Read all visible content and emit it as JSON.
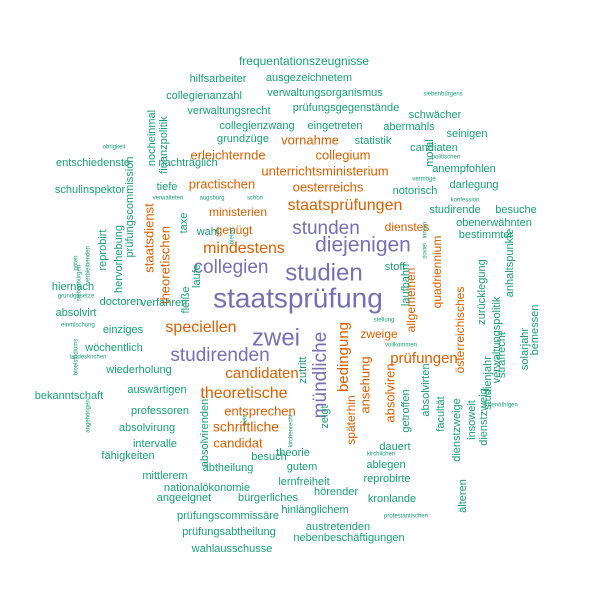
{
  "colors": {
    "background": "#ffffff",
    "purple": "#7570b3",
    "orange": "#d95f02",
    "green": "#1b9e77"
  },
  "words": [
    {
      "text": "staatsprüfung",
      "color": "purple",
      "rot": 0
    },
    {
      "text": "zwei",
      "color": "purple",
      "rot": 0
    },
    {
      "text": "studien",
      "color": "purple",
      "rot": 0
    },
    {
      "text": "diejenigen",
      "color": "purple",
      "rot": 0
    },
    {
      "text": "stunden",
      "color": "purple",
      "rot": 0
    },
    {
      "text": "collegien",
      "color": "purple",
      "rot": 0
    },
    {
      "text": "studirenden",
      "color": "purple",
      "rot": 0
    },
    {
      "text": "mündliche",
      "color": "purple",
      "rot": -90
    },
    {
      "text": "staatsprüfungen",
      "color": "orange",
      "rot": 0
    },
    {
      "text": "mindestens",
      "color": "orange",
      "rot": 0
    },
    {
      "text": "speciellen",
      "color": "orange",
      "rot": 0
    },
    {
      "text": "theoretische",
      "color": "orange",
      "rot": 0
    },
    {
      "text": "candidaten",
      "color": "orange",
      "rot": 0
    },
    {
      "text": "prüfungen",
      "color": "orange",
      "rot": 0
    },
    {
      "text": "bedingung",
      "color": "orange",
      "rot": -90
    },
    {
      "text": "schriftliche",
      "color": "orange",
      "rot": 0
    },
    {
      "text": "entsprechen",
      "color": "orange",
      "rot": 0
    },
    {
      "text": "candidat",
      "color": "orange",
      "rot": 0
    },
    {
      "text": "practischen",
      "color": "orange",
      "rot": 0
    },
    {
      "text": "ministerien",
      "color": "orange",
      "rot": 0
    },
    {
      "text": "erleichternde",
      "color": "orange",
      "rot": 0
    },
    {
      "text": "vornahme",
      "color": "orange",
      "rot": 0
    },
    {
      "text": "collegium",
      "color": "orange",
      "rot": 0
    },
    {
      "text": "oesterreichs",
      "color": "orange",
      "rot": 0
    },
    {
      "text": "unterrichtsministerium",
      "color": "orange",
      "rot": 0
    },
    {
      "text": "genügt",
      "color": "orange",
      "rot": 0
    },
    {
      "text": "dienstes",
      "color": "orange",
      "rot": 0
    },
    {
      "text": "zweige",
      "color": "orange",
      "rot": 0
    },
    {
      "text": "staatsdienst",
      "color": "orange",
      "rot": -90
    },
    {
      "text": "theoretischen",
      "color": "orange",
      "rot": -90
    },
    {
      "text": "ansehung",
      "color": "orange",
      "rot": -90
    },
    {
      "text": "späterhin",
      "color": "orange",
      "rot": -90
    },
    {
      "text": "absolviren",
      "color": "orange",
      "rot": -90
    },
    {
      "text": "allgemeinen",
      "color": "orange",
      "rot": -90
    },
    {
      "text": "quadriennium",
      "color": "orange",
      "rot": -90
    },
    {
      "text": "österreichisches",
      "color": "orange",
      "rot": -90
    },
    {
      "text": "frequentationszeugnisse",
      "color": "green",
      "rot": 0
    },
    {
      "text": "hilfsarbeiter",
      "color": "green",
      "rot": 0
    },
    {
      "text": "ausgezeichnetem",
      "color": "green",
      "rot": 0
    },
    {
      "text": "collegienanzahl",
      "color": "green",
      "rot": 0
    },
    {
      "text": "verwaltungsorganismus",
      "color": "green",
      "rot": 0
    },
    {
      "text": "siebenbürgens",
      "color": "green",
      "rot": 0
    },
    {
      "text": "verwaltungsrecht",
      "color": "green",
      "rot": 0
    },
    {
      "text": "prüfungsgegenstände",
      "color": "green",
      "rot": 0
    },
    {
      "text": "schwächer",
      "color": "green",
      "rot": 0
    },
    {
      "text": "collegienzwang",
      "color": "green",
      "rot": 0
    },
    {
      "text": "eingetreten",
      "color": "green",
      "rot": 0
    },
    {
      "text": "abermahls",
      "color": "green",
      "rot": 0
    },
    {
      "text": "seinigen",
      "color": "green",
      "rot": 0
    },
    {
      "text": "obrigkeit",
      "color": "green",
      "rot": 0
    },
    {
      "text": "grundzüge",
      "color": "green",
      "rot": 0
    },
    {
      "text": "statistik",
      "color": "green",
      "rot": 0
    },
    {
      "text": "candiaten",
      "color": "green",
      "rot": 0
    },
    {
      "text": "nachträglich",
      "color": "green",
      "rot": 0
    },
    {
      "text": "politischen",
      "color": "green",
      "rot": 0
    },
    {
      "text": "entschiedenste",
      "color": "green",
      "rot": 0
    },
    {
      "text": "anempfohlen",
      "color": "green",
      "rot": 0
    },
    {
      "text": "darlegung",
      "color": "green",
      "rot": 0
    },
    {
      "text": "schulinspektor",
      "color": "green",
      "rot": 0
    },
    {
      "text": "tiefe",
      "color": "green",
      "rot": 0
    },
    {
      "text": "notorisch",
      "color": "green",
      "rot": 0
    },
    {
      "text": "konfession",
      "color": "green",
      "rot": 0
    },
    {
      "text": "verwalteten",
      "color": "green",
      "rot": 0
    },
    {
      "text": "augsburg",
      "color": "green",
      "rot": 0
    },
    {
      "text": "schon",
      "color": "green",
      "rot": 0
    },
    {
      "text": "vermöge",
      "color": "green",
      "rot": 0
    },
    {
      "text": "studirende",
      "color": "green",
      "rot": 0
    },
    {
      "text": "besuche",
      "color": "green",
      "rot": 0
    },
    {
      "text": "obenerwähnten",
      "color": "green",
      "rot": 0
    },
    {
      "text": "wahl",
      "color": "green",
      "rot": 0
    },
    {
      "text": "bestimmter",
      "color": "green",
      "rot": 0
    },
    {
      "text": "stoff",
      "color": "green",
      "rot": 0
    },
    {
      "text": "hiernach",
      "color": "green",
      "rot": 0
    },
    {
      "text": "grundgesetze",
      "color": "green",
      "rot": 0
    },
    {
      "text": "absolvirt",
      "color": "green",
      "rot": 0
    },
    {
      "text": "doctoren",
      "color": "green",
      "rot": 0
    },
    {
      "text": "verfahren",
      "color": "green",
      "rot": 0
    },
    {
      "text": "einmischung",
      "color": "green",
      "rot": 0
    },
    {
      "text": "einziges",
      "color": "green",
      "rot": 0
    },
    {
      "text": "stellung",
      "color": "green",
      "rot": 0
    },
    {
      "text": "wöchentlich",
      "color": "green",
      "rot": 0
    },
    {
      "text": "vollkommen",
      "color": "green",
      "rot": 0
    },
    {
      "text": "landeskirchen",
      "color": "green",
      "rot": 0
    },
    {
      "text": "wiederholung",
      "color": "green",
      "rot": 0
    },
    {
      "text": "bekanntschaft",
      "color": "green",
      "rot": 0
    },
    {
      "text": "auswärtigen",
      "color": "green",
      "rot": 0
    },
    {
      "text": "professoren",
      "color": "green",
      "rot": 0
    },
    {
      "text": "benöthigen",
      "color": "green",
      "rot": 0
    },
    {
      "text": "absolvirung",
      "color": "green",
      "rot": 0
    },
    {
      "text": "intervalle",
      "color": "green",
      "rot": 0
    },
    {
      "text": "fähigkeiten",
      "color": "green",
      "rot": 0
    },
    {
      "text": "besuch",
      "color": "green",
      "rot": 0
    },
    {
      "text": "theorie",
      "color": "green",
      "rot": 0
    },
    {
      "text": "abtheilung",
      "color": "green",
      "rot": 0
    },
    {
      "text": "gutem",
      "color": "green",
      "rot": 0
    },
    {
      "text": "dauert",
      "color": "green",
      "rot": 0
    },
    {
      "text": "kirchlichen",
      "color": "green",
      "rot": 0
    },
    {
      "text": "ablegen",
      "color": "green",
      "rot": 0
    },
    {
      "text": "reprobirte",
      "color": "green",
      "rot": 0
    },
    {
      "text": "mittlerem",
      "color": "green",
      "rot": 0
    },
    {
      "text": "nationalökonomie",
      "color": "green",
      "rot": 0
    },
    {
      "text": "lernfreiheit",
      "color": "green",
      "rot": 0
    },
    {
      "text": "angeeignet",
      "color": "green",
      "rot": 0
    },
    {
      "text": "bürgerliches",
      "color": "green",
      "rot": 0
    },
    {
      "text": "hörender",
      "color": "green",
      "rot": 0
    },
    {
      "text": "kronlande",
      "color": "green",
      "rot": 0
    },
    {
      "text": "hinlänglichem",
      "color": "green",
      "rot": 0
    },
    {
      "text": "protestantischen",
      "color": "green",
      "rot": 0
    },
    {
      "text": "prüfungscommissäre",
      "color": "green",
      "rot": 0
    },
    {
      "text": "austretenden",
      "color": "green",
      "rot": 0
    },
    {
      "text": "prüfungsabtheilung",
      "color": "green",
      "rot": 0
    },
    {
      "text": "nebenbeschäftigungen",
      "color": "green",
      "rot": 0
    },
    {
      "text": "wahlausschusse",
      "color": "green",
      "rot": 0
    },
    {
      "text": "nocheinmal",
      "color": "green",
      "rot": -90
    },
    {
      "text": "finanzpolitik",
      "color": "green",
      "rot": -90
    },
    {
      "text": "prüfungscommission",
      "color": "green",
      "rot": -90
    },
    {
      "text": "hervorhebung",
      "color": "green",
      "rot": -90
    },
    {
      "text": "reprobirt",
      "color": "green",
      "rot": -90
    },
    {
      "text": "taxe",
      "color": "green",
      "rot": -90
    },
    {
      "text": "fleiße",
      "color": "green",
      "rot": -90
    },
    {
      "text": "laufe",
      "color": "green",
      "rot": -90
    },
    {
      "text": "laufbahn",
      "color": "green",
      "rot": -90
    },
    {
      "text": "moral",
      "color": "green",
      "rot": -90
    },
    {
      "text": "zutritt",
      "color": "green",
      "rot": -90
    },
    {
      "text": "zeigt",
      "color": "green",
      "rot": -90
    },
    {
      "text": "getroffen",
      "color": "green",
      "rot": -90
    },
    {
      "text": "facultät",
      "color": "green",
      "rot": -90
    },
    {
      "text": "absolvirten",
      "color": "green",
      "rot": -90
    },
    {
      "text": "älteren",
      "color": "green",
      "rot": -90
    },
    {
      "text": "dienstzweige",
      "color": "green",
      "rot": -90
    },
    {
      "text": "insoweit",
      "color": "green",
      "rot": -90
    },
    {
      "text": "studienjahr",
      "color": "green",
      "rot": -90
    },
    {
      "text": "dienstzweig",
      "color": "green",
      "rot": -90
    },
    {
      "text": "zurücklegung",
      "color": "green",
      "rot": -90
    },
    {
      "text": "verwaltungspolitik",
      "color": "green",
      "rot": -90
    },
    {
      "text": "strafrecht",
      "color": "green",
      "rot": -90
    },
    {
      "text": "anhaltspunkte",
      "color": "green",
      "rot": -90
    },
    {
      "text": "solarjahr",
      "color": "green",
      "rot": -90
    },
    {
      "text": "bemessen",
      "color": "green",
      "rot": -90
    },
    {
      "text": "absolvirenden",
      "color": "green",
      "rot": -90
    },
    {
      "text": "kirchenrecht",
      "color": "green",
      "rot": -90
    },
    {
      "text": "freie",
      "color": "green",
      "rot": -90
    },
    {
      "text": "bieten",
      "color": "green",
      "rot": -90
    },
    {
      "text": "soviel",
      "color": "green",
      "rot": -90
    },
    {
      "text": "innern",
      "color": "green",
      "rot": -90
    },
    {
      "text": "böten",
      "color": "green",
      "rot": -90
    },
    {
      "text": "verbleibenden",
      "color": "green",
      "rot": -90
    },
    {
      "text": "siebenbürgen",
      "color": "green",
      "rot": -90
    },
    {
      "text": "bibelstudiums",
      "color": "green",
      "rot": -90
    },
    {
      "text": "angehörigen",
      "color": "green",
      "rot": -90
    },
    {
      "text": "abgeschlossen",
      "color": "green",
      "rot": -90
    },
    {
      "text": "selbstständige",
      "color": "green",
      "rot": -90
    }
  ]
}
